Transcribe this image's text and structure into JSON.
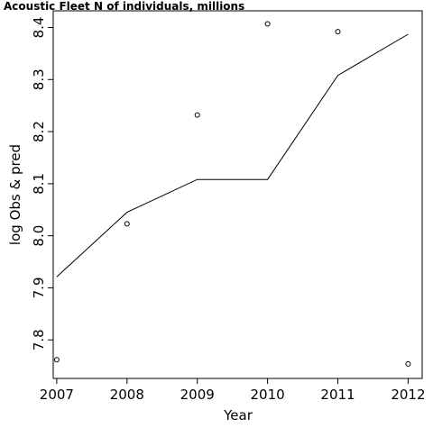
{
  "chart_data": {
    "type": "line",
    "title": "Acoustic Fleet   N of individuals, millions",
    "xlabel": "Year",
    "ylabel": "log Obs & pred",
    "x": [
      2007,
      2008,
      2009,
      2010,
      2011,
      2012
    ],
    "xlim": [
      2006.95,
      2012.2
    ],
    "ylim": [
      7.726,
      8.432
    ],
    "xticks": [
      "2007",
      "2008",
      "2009",
      "2010",
      "2011",
      "2012"
    ],
    "yticks": [
      "7.8",
      "7.9",
      "8.0",
      "8.1",
      "8.2",
      "8.3",
      "8.4"
    ],
    "ytick_values": [
      7.8,
      7.9,
      8.0,
      8.1,
      8.2,
      8.3,
      8.4
    ],
    "grid": false,
    "series": [
      {
        "kind": "points",
        "marker": "open-circle",
        "values": [
          7.762,
          8.023,
          8.232,
          8.407,
          8.392,
          7.754
        ]
      },
      {
        "kind": "line",
        "values": [
          7.921,
          8.045,
          8.108,
          8.108,
          8.308,
          8.387
        ]
      }
    ],
    "colors": {
      "line": "#000000",
      "points": "#000000",
      "frame": "#000000"
    }
  }
}
